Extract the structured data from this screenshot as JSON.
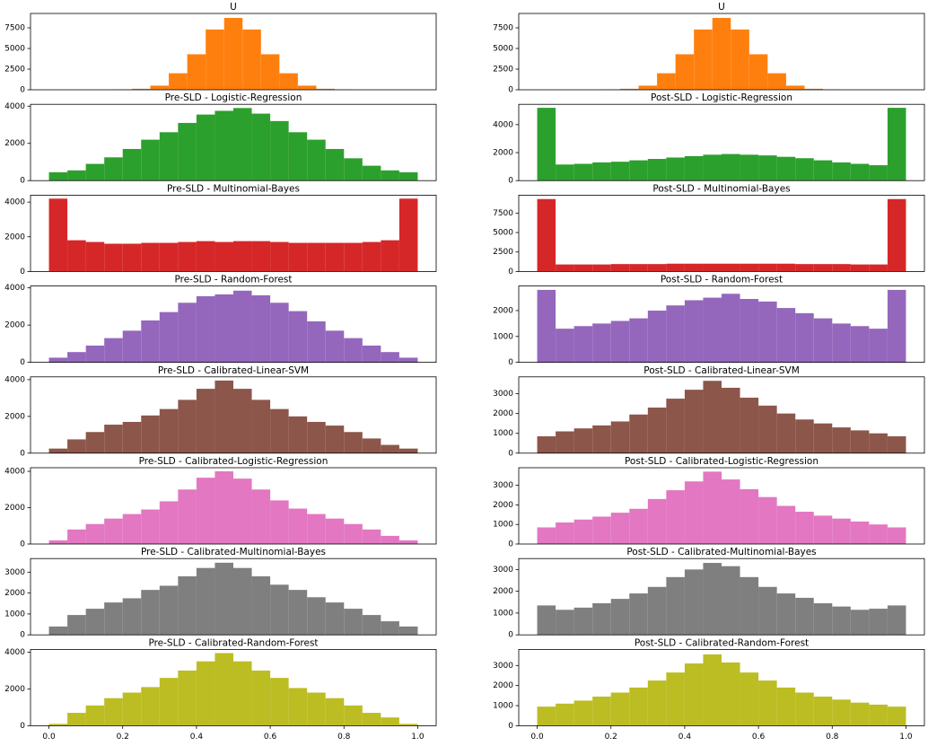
{
  "chart_data": [
    {
      "type": "histogram",
      "title": "U",
      "color": "#ff7f0e",
      "bins": [
        0.175,
        0.225,
        0.275,
        0.325,
        0.375,
        0.425,
        0.475,
        0.525,
        0.575,
        0.625,
        0.675,
        0.725,
        0.775,
        0.825
      ],
      "values": [
        40,
        120,
        500,
        2000,
        4300,
        7300,
        8700,
        7300,
        4300,
        2000,
        500,
        120,
        40
      ],
      "xlim": [
        -0.05,
        1.05
      ],
      "ylim": [
        0,
        9240
      ],
      "yticks": [
        0,
        2500,
        5000,
        7500
      ]
    },
    {
      "type": "histogram",
      "title": "U",
      "color": "#ff7f0e",
      "bins": [
        0.175,
        0.225,
        0.275,
        0.325,
        0.375,
        0.425,
        0.475,
        0.525,
        0.575,
        0.625,
        0.675,
        0.725,
        0.775,
        0.825
      ],
      "values": [
        40,
        120,
        500,
        2000,
        4300,
        7300,
        8700,
        7300,
        4300,
        2000,
        500,
        120,
        40
      ],
      "xlim": [
        -0.05,
        1.05
      ],
      "ylim": [
        0,
        9240
      ],
      "yticks": [
        0,
        2500,
        5000,
        7500
      ]
    },
    {
      "type": "histogram",
      "title": "Pre-SLD - Logistic-Regression",
      "color": "#2ca02c",
      "bins": [
        0,
        0.05,
        0.1,
        0.15,
        0.2,
        0.25,
        0.3,
        0.35,
        0.4,
        0.45,
        0.5,
        0.55,
        0.6,
        0.65,
        0.7,
        0.75,
        0.8,
        0.85,
        0.9,
        0.95,
        1
      ],
      "values": [
        450,
        550,
        900,
        1250,
        1700,
        2200,
        2600,
        3100,
        3550,
        3750,
        3900,
        3600,
        3200,
        2600,
        2200,
        1700,
        1200,
        800,
        550,
        450
      ],
      "xlim": [
        -0.05,
        1.05
      ],
      "ylim": [
        0,
        4100
      ],
      "yticks": [
        0,
        2000,
        4000
      ]
    },
    {
      "type": "histogram",
      "title": "Post-SLD - Logistic-Regression",
      "color": "#2ca02c",
      "bins": [
        0,
        0.05,
        0.1,
        0.15,
        0.2,
        0.25,
        0.3,
        0.35,
        0.4,
        0.45,
        0.5,
        0.55,
        0.6,
        0.65,
        0.7,
        0.75,
        0.8,
        0.85,
        0.9,
        0.95,
        1
      ],
      "values": [
        5200,
        1150,
        1200,
        1300,
        1350,
        1450,
        1550,
        1650,
        1750,
        1850,
        1900,
        1850,
        1800,
        1700,
        1600,
        1450,
        1300,
        1200,
        1100,
        5200
      ],
      "xlim": [
        -0.05,
        1.05
      ],
      "ylim": [
        0,
        5450
      ],
      "yticks": [
        0,
        2000,
        4000
      ]
    },
    {
      "type": "histogram",
      "title": "Pre-SLD - Multinomial-Bayes",
      "color": "#d62728",
      "bins": [
        0,
        0.05,
        0.1,
        0.15,
        0.2,
        0.25,
        0.3,
        0.35,
        0.4,
        0.45,
        0.5,
        0.55,
        0.6,
        0.65,
        0.7,
        0.75,
        0.8,
        0.85,
        0.9,
        0.95,
        1
      ],
      "values": [
        4200,
        1800,
        1700,
        1600,
        1600,
        1650,
        1650,
        1700,
        1750,
        1700,
        1750,
        1750,
        1700,
        1650,
        1650,
        1650,
        1650,
        1700,
        1800,
        4200
      ],
      "xlim": [
        -0.05,
        1.05
      ],
      "ylim": [
        0,
        4400
      ],
      "yticks": [
        0,
        2000,
        4000
      ]
    },
    {
      "type": "histogram",
      "title": "Post-SLD - Multinomial-Bayes",
      "color": "#d62728",
      "bins": [
        0,
        0.05,
        0.1,
        0.15,
        0.2,
        0.25,
        0.3,
        0.35,
        0.4,
        0.45,
        0.5,
        0.55,
        0.6,
        0.65,
        0.7,
        0.75,
        0.8,
        0.85,
        0.9,
        0.95,
        1
      ],
      "values": [
        9300,
        900,
        900,
        900,
        950,
        950,
        950,
        1000,
        1000,
        1000,
        1000,
        1000,
        1000,
        1000,
        950,
        950,
        950,
        900,
        900,
        9300
      ],
      "xlim": [
        -0.05,
        1.05
      ],
      "ylim": [
        0,
        9800
      ],
      "yticks": [
        0,
        2500,
        5000,
        7500
      ]
    },
    {
      "type": "histogram",
      "title": "Pre-SLD - Random-Forest",
      "color": "#9467bd",
      "bins": [
        0,
        0.05,
        0.1,
        0.15,
        0.2,
        0.25,
        0.3,
        0.35,
        0.4,
        0.45,
        0.5,
        0.55,
        0.6,
        0.65,
        0.7,
        0.75,
        0.8,
        0.85,
        0.9,
        0.95,
        1
      ],
      "values": [
        250,
        550,
        900,
        1300,
        1700,
        2250,
        2700,
        3200,
        3550,
        3650,
        3850,
        3600,
        3200,
        2750,
        2200,
        1700,
        1300,
        900,
        550,
        250
      ],
      "xlim": [
        -0.05,
        1.05
      ],
      "ylim": [
        0,
        4100
      ],
      "yticks": [
        0,
        2000,
        4000
      ]
    },
    {
      "type": "histogram",
      "title": "Post-SLD - Random-Forest",
      "color": "#9467bd",
      "bins": [
        0,
        0.05,
        0.1,
        0.15,
        0.2,
        0.25,
        0.3,
        0.35,
        0.4,
        0.45,
        0.5,
        0.55,
        0.6,
        0.65,
        0.7,
        0.75,
        0.8,
        0.85,
        0.9,
        0.95,
        1
      ],
      "values": [
        2800,
        1300,
        1400,
        1500,
        1600,
        1700,
        2000,
        2200,
        2400,
        2500,
        2650,
        2450,
        2350,
        2100,
        1900,
        1700,
        1500,
        1400,
        1300,
        2800
      ],
      "xlim": [
        -0.05,
        1.05
      ],
      "ylim": [
        0,
        2950
      ],
      "yticks": [
        0,
        1000,
        2000
      ]
    },
    {
      "type": "histogram",
      "title": "Pre-SLD - Calibrated-Linear-SVM",
      "color": "#8c564b",
      "bins": [
        0,
        0.05,
        0.1,
        0.15,
        0.2,
        0.25,
        0.3,
        0.35,
        0.4,
        0.45,
        0.5,
        0.55,
        0.6,
        0.65,
        0.7,
        0.75,
        0.8,
        0.85,
        0.9,
        0.95,
        1
      ],
      "values": [
        250,
        750,
        1150,
        1550,
        1700,
        2050,
        2400,
        2900,
        3500,
        3950,
        3500,
        2900,
        2400,
        2000,
        1700,
        1500,
        1150,
        800,
        450,
        250
      ],
      "xlim": [
        -0.05,
        1.05
      ],
      "ylim": [
        0,
        4150
      ],
      "yticks": [
        0,
        2000,
        4000
      ]
    },
    {
      "type": "histogram",
      "title": "Post-SLD - Calibrated-Linear-SVM",
      "color": "#8c564b",
      "bins": [
        0,
        0.05,
        0.1,
        0.15,
        0.2,
        0.25,
        0.3,
        0.35,
        0.4,
        0.45,
        0.5,
        0.55,
        0.6,
        0.65,
        0.7,
        0.75,
        0.8,
        0.85,
        0.9,
        0.95,
        1
      ],
      "values": [
        850,
        1100,
        1250,
        1400,
        1600,
        1950,
        2300,
        2750,
        3200,
        3650,
        3300,
        2800,
        2400,
        2000,
        1700,
        1500,
        1300,
        1150,
        1000,
        850
      ],
      "xlim": [
        -0.05,
        1.05
      ],
      "ylim": [
        0,
        3850
      ],
      "yticks": [
        0,
        1000,
        2000,
        3000
      ]
    },
    {
      "type": "histogram",
      "title": "Pre-SLD - Calibrated-Logistic-Regression",
      "color": "#e377c2",
      "bins": [
        0,
        0.05,
        0.1,
        0.15,
        0.2,
        0.25,
        0.3,
        0.35,
        0.4,
        0.45,
        0.5,
        0.55,
        0.6,
        0.65,
        0.7,
        0.75,
        0.8,
        0.85,
        0.9,
        0.95,
        1
      ],
      "values": [
        200,
        800,
        1100,
        1400,
        1650,
        1900,
        2350,
        3000,
        3650,
        4000,
        3600,
        3000,
        2400,
        1950,
        1650,
        1400,
        1100,
        800,
        450,
        200
      ],
      "xlim": [
        -0.05,
        1.05
      ],
      "ylim": [
        0,
        4200
      ],
      "yticks": [
        0,
        2000,
        4000
      ]
    },
    {
      "type": "histogram",
      "title": "Post-SLD - Calibrated-Logistic-Regression",
      "color": "#e377c2",
      "bins": [
        0,
        0.05,
        0.1,
        0.15,
        0.2,
        0.25,
        0.3,
        0.35,
        0.4,
        0.45,
        0.5,
        0.55,
        0.6,
        0.65,
        0.7,
        0.75,
        0.8,
        0.85,
        0.9,
        0.95,
        1
      ],
      "values": [
        850,
        1100,
        1250,
        1400,
        1600,
        1800,
        2300,
        2750,
        3200,
        3700,
        3300,
        2800,
        2400,
        1950,
        1650,
        1450,
        1300,
        1150,
        1000,
        850
      ],
      "xlim": [
        -0.05,
        1.05
      ],
      "ylim": [
        0,
        3900
      ],
      "yticks": [
        0,
        1000,
        2000,
        3000
      ]
    },
    {
      "type": "histogram",
      "title": "Pre-SLD - Calibrated-Multinomial-Bayes",
      "color": "#7f7f7f",
      "bins": [
        0,
        0.05,
        0.1,
        0.15,
        0.2,
        0.25,
        0.3,
        0.35,
        0.4,
        0.45,
        0.5,
        0.55,
        0.6,
        0.65,
        0.7,
        0.75,
        0.8,
        0.85,
        0.9,
        0.95,
        1
      ],
      "values": [
        400,
        950,
        1250,
        1550,
        1750,
        2150,
        2350,
        2800,
        3200,
        3450,
        3200,
        2800,
        2400,
        2150,
        1800,
        1550,
        1250,
        950,
        650,
        400
      ],
      "xlim": [
        -0.05,
        1.05
      ],
      "ylim": [
        0,
        3650
      ],
      "yticks": [
        0,
        1000,
        2000,
        3000
      ]
    },
    {
      "type": "histogram",
      "title": "Post-SLD - Calibrated-Multinomial-Bayes",
      "color": "#7f7f7f",
      "bins": [
        0,
        0.05,
        0.1,
        0.15,
        0.2,
        0.25,
        0.3,
        0.35,
        0.4,
        0.45,
        0.5,
        0.55,
        0.6,
        0.65,
        0.7,
        0.75,
        0.8,
        0.85,
        0.9,
        0.95,
        1
      ],
      "values": [
        1350,
        1150,
        1250,
        1450,
        1650,
        1900,
        2200,
        2650,
        3000,
        3300,
        3150,
        2650,
        2200,
        1900,
        1700,
        1450,
        1300,
        1150,
        1200,
        1350
      ],
      "xlim": [
        -0.05,
        1.05
      ],
      "ylim": [
        0,
        3500
      ],
      "yticks": [
        0,
        1000,
        2000,
        3000
      ]
    },
    {
      "type": "histogram",
      "title": "Pre-SLD - Calibrated-Random-Forest",
      "color": "#bcbd22",
      "bins": [
        0,
        0.05,
        0.1,
        0.15,
        0.2,
        0.25,
        0.3,
        0.35,
        0.4,
        0.45,
        0.5,
        0.55,
        0.6,
        0.65,
        0.7,
        0.75,
        0.8,
        0.85,
        0.9,
        0.95,
        1
      ],
      "values": [
        100,
        700,
        1100,
        1500,
        1800,
        2100,
        2600,
        3000,
        3500,
        3950,
        3500,
        3000,
        2600,
        2050,
        1800,
        1500,
        1100,
        700,
        450,
        100
      ],
      "xlim": [
        -0.05,
        1.05
      ],
      "ylim": [
        0,
        4150
      ],
      "yticks": [
        0,
        2000,
        4000
      ],
      "xticks": [
        {
          "value": 0,
          "label": "0.0"
        },
        0.2,
        0.4,
        0.6,
        0.8,
        {
          "value": 1,
          "label": "1.0"
        }
      ]
    },
    {
      "type": "histogram",
      "title": "Post-SLD - Calibrated-Random-Forest",
      "color": "#bcbd22",
      "bins": [
        0,
        0.05,
        0.1,
        0.15,
        0.2,
        0.25,
        0.3,
        0.35,
        0.4,
        0.45,
        0.5,
        0.55,
        0.6,
        0.65,
        0.7,
        0.75,
        0.8,
        0.85,
        0.9,
        0.95,
        1
      ],
      "values": [
        950,
        1100,
        1250,
        1450,
        1650,
        1900,
        2250,
        2650,
        3100,
        3550,
        3150,
        2650,
        2250,
        1900,
        1650,
        1450,
        1300,
        1150,
        1050,
        950
      ],
      "xlim": [
        -0.05,
        1.05
      ],
      "ylim": [
        0,
        3800
      ],
      "yticks": [
        0,
        1000,
        2000,
        3000
      ],
      "xticks": [
        {
          "value": 0,
          "label": "0.0"
        },
        0.2,
        0.4,
        0.6,
        0.8,
        {
          "value": 1,
          "label": "1.0"
        }
      ]
    }
  ]
}
